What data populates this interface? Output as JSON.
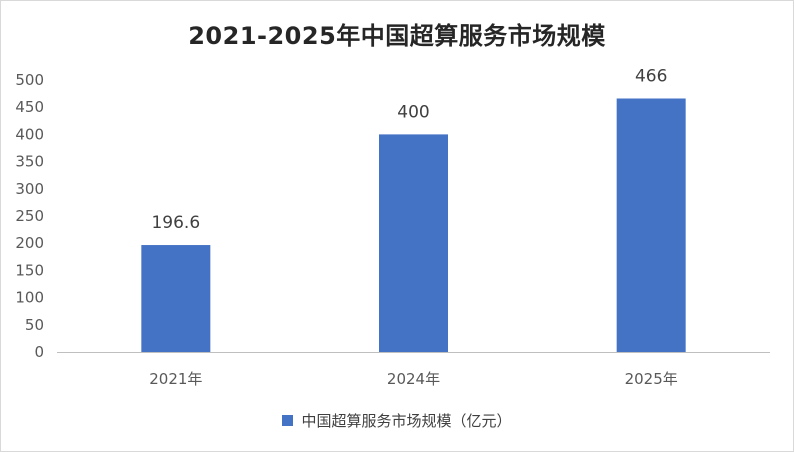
{
  "chart_data": {
    "type": "bar",
    "title": "2021-2025年中国超算服务市场规模",
    "categories": [
      "2021年",
      "2024年",
      "2025年"
    ],
    "series": [
      {
        "name": "中国超算服务市场规模（亿元）",
        "values": [
          196.6,
          400,
          466
        ],
        "data_labels": [
          "196.6",
          "400",
          "466"
        ]
      }
    ],
    "y_ticks": [
      "0",
      "50",
      "100",
      "150",
      "200",
      "250",
      "300",
      "350",
      "400",
      "450",
      "500"
    ],
    "ylim": [
      0,
      500
    ],
    "grid": false,
    "legend_position": "bottom",
    "colors": {
      "bar": "#4472c4",
      "axis": "#bfbfbf",
      "text": "#595959",
      "title": "#262626"
    }
  }
}
